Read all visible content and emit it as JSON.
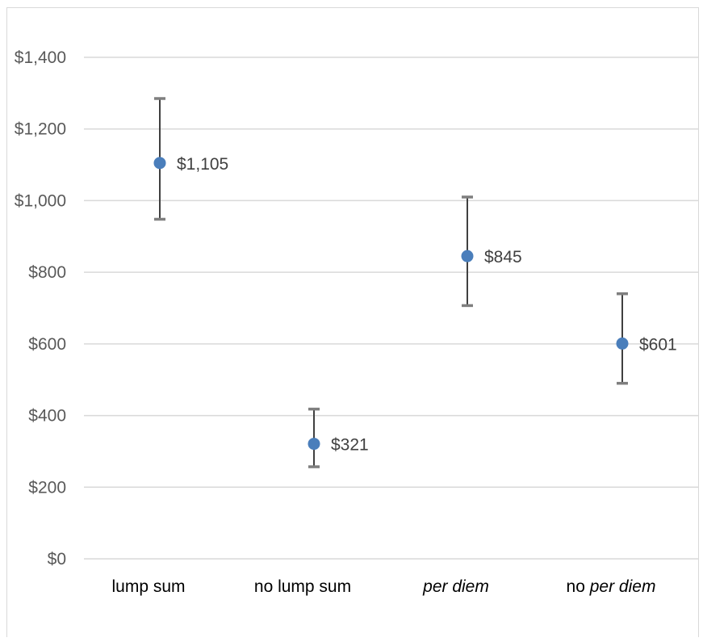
{
  "chart_data": {
    "type": "scatter",
    "categories": [
      "lump sum",
      "no lump sum",
      "per diem",
      "no per diem"
    ],
    "category_italic": [
      [
        {
          "text": "lump sum",
          "italic": false
        }
      ],
      [
        {
          "text": "no lump sum",
          "italic": false
        }
      ],
      [
        {
          "text": "per diem",
          "italic": true
        }
      ],
      [
        {
          "text": "no ",
          "italic": false
        },
        {
          "text": "per diem",
          "italic": true
        }
      ]
    ],
    "values": [
      1105,
      321,
      845,
      601
    ],
    "error_low": [
      948,
      257,
      707,
      490
    ],
    "error_high": [
      1285,
      418,
      1010,
      740
    ],
    "data_labels": [
      "$1,105",
      "$321",
      "$845",
      "$601"
    ],
    "y_ticks": [
      0,
      200,
      400,
      600,
      800,
      1000,
      1200,
      1400
    ],
    "y_tick_labels": [
      "$0",
      "$200",
      "$400",
      "$600",
      "$800",
      "$1,000",
      "$1,200",
      "$1,400"
    ],
    "ylim": [
      0,
      1400
    ],
    "title": "",
    "xlabel": "",
    "ylabel": "",
    "grid": true,
    "legend": "none",
    "colors": {
      "marker": "#4a7ebb",
      "error_bar": "#404040",
      "error_cap": "#7f7f7f",
      "grid": "#d9d9d9"
    }
  }
}
